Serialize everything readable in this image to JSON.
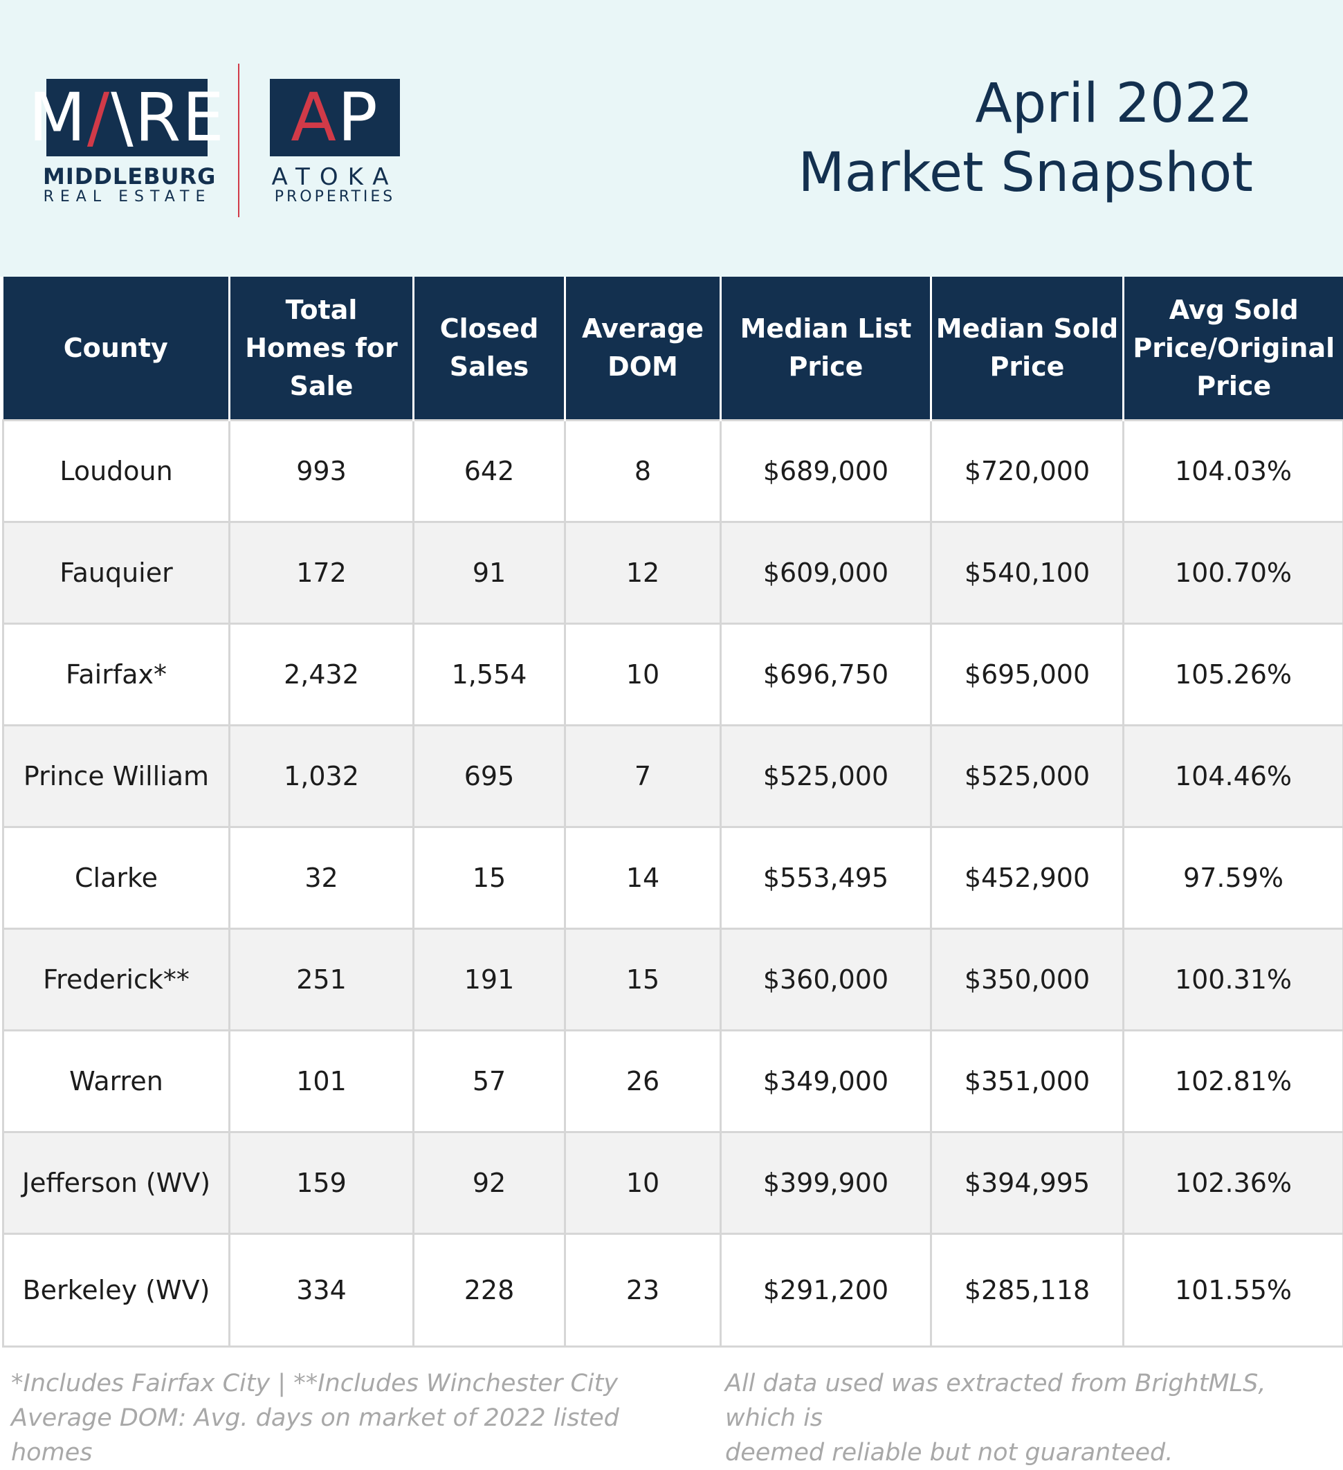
{
  "brand": {
    "mre": {
      "mark_a": "M",
      "mark_accent": "/",
      "mark_b": "\\RE",
      "name_line1": "MIDDLEBURG",
      "name_line2": "REAL ESTATE"
    },
    "ap": {
      "mark_a": "A",
      "mark_b": "P",
      "name_line1": "ATOKA",
      "name_line2": "PROPERTIES"
    },
    "colors": {
      "navy": "#13304f",
      "accent_red": "#d13a48",
      "header_bg": "#e9f6f7"
    }
  },
  "title": {
    "line1": "April 2022",
    "line2": "Market Snapshot"
  },
  "table": {
    "columns": [
      "County",
      "Total Homes for Sale",
      "Closed Sales",
      "Average DOM",
      "Median List Price",
      "Median Sold Price",
      "Avg Sold Price/Original Price"
    ],
    "rows": [
      [
        "Loudoun",
        "993",
        "642",
        "8",
        "$689,000",
        "$720,000",
        "104.03%"
      ],
      [
        "Fauquier",
        "172",
        "91",
        "12",
        "$609,000",
        "$540,100",
        "100.70%"
      ],
      [
        "Fairfax*",
        "2,432",
        "1,554",
        "10",
        "$696,750",
        "$695,000",
        "105.26%"
      ],
      [
        "Prince William",
        "1,032",
        "695",
        "7",
        "$525,000",
        "$525,000",
        "104.46%"
      ],
      [
        "Clarke",
        "32",
        "15",
        "14",
        "$553,495",
        "$452,900",
        "97.59%"
      ],
      [
        "Frederick**",
        "251",
        "191",
        "15",
        "$360,000",
        "$350,000",
        "100.31%"
      ],
      [
        "Warren",
        "101",
        "57",
        "26",
        "$349,000",
        "$351,000",
        "102.81%"
      ],
      [
        "Jefferson (WV)",
        "159",
        "92",
        "10",
        "$399,900",
        "$394,995",
        "102.36%"
      ],
      [
        "Berkeley (WV)",
        "334",
        "228",
        "23",
        "$291,200",
        "$285,118",
        "101.55%"
      ]
    ]
  },
  "footnotes": {
    "left_line1": "*Includes Fairfax City | **Includes Winchester City",
    "left_line2": "Average DOM: Avg. days on market of 2022 listed homes",
    "right_line1": "All data used was extracted from BrightMLS, which is",
    "right_line2": "deemed reliable but not guaranteed."
  }
}
